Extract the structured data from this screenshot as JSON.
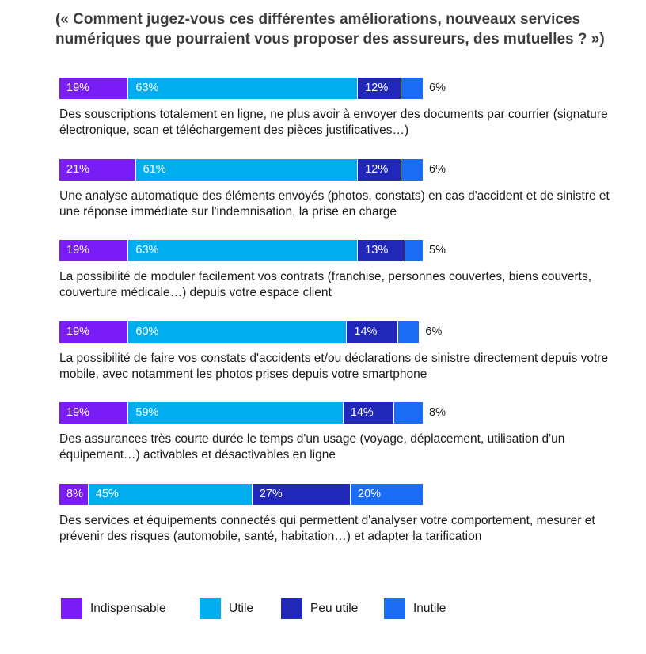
{
  "title": "(« Comment jugez-vous ces différentes améliorations, nouveaux services numériques que pourraient vous proposer des assureurs, des mutuelles  ? »)",
  "colors": {
    "indispensable": "#7a1cf6",
    "utile": "#00adef",
    "peu_utile": "#2128b8",
    "inutile": "#1b6cf5"
  },
  "chart_data": {
    "type": "bar",
    "orientation": "horizontal",
    "stacked": true,
    "title": "(« Comment jugez-vous ces différentes améliorations, nouveaux services numériques que pourraient vous proposer des assureurs, des mutuelles  ? »)",
    "categories": [
      "Des souscriptions totalement en ligne, ne plus avoir à envoyer des documents par courrier (signature électronique, scan et téléchargement des pièces justificatives…)",
      "Une analyse automatique des éléments envoyés (photos, constats) en cas d'accident et de sinistre et une réponse immédiate sur l'indemnisation, la prise en charge",
      "La possibilité de moduler facilement vos contrats (franchise, personnes couvertes, biens couverts, couverture médicale…) depuis votre espace client",
      "La possibilité de faire vos constats d'accidents et/ou déclarations de sinistre directement depuis votre mobile, avec notamment les photos prises depuis votre smartphone",
      "Des assurances très courte durée le temps d'un usage (voyage, déplacement, utilisation d'un équipement…) activables et désactivables en ligne",
      "Des services et équipements connectés qui permettent d'analyser votre comportement, mesurer et prévenir des risques (automobile, santé, habitation…) et adapter la tarification"
    ],
    "series": [
      {
        "name": "Indispensable",
        "values": [
          19,
          21,
          19,
          19,
          19,
          8
        ]
      },
      {
        "name": "Utile",
        "values": [
          63,
          61,
          63,
          60,
          59,
          45
        ]
      },
      {
        "name": "Peu utile",
        "values": [
          12,
          12,
          13,
          14,
          14,
          27
        ]
      },
      {
        "name": "Inutile",
        "values": [
          6,
          6,
          5,
          6,
          8,
          20
        ]
      }
    ],
    "value_suffix": "%",
    "xlim": [
      0,
      100
    ],
    "grid": false,
    "legend_position": "bottom"
  },
  "legend": [
    {
      "label": "Indispensable",
      "color": "#7a1cf6"
    },
    {
      "label": "Utile",
      "color": "#00adef"
    },
    {
      "label": "Peu utile",
      "color": "#2128b8"
    },
    {
      "label": "Inutile",
      "color": "#1b6cf5"
    }
  ]
}
